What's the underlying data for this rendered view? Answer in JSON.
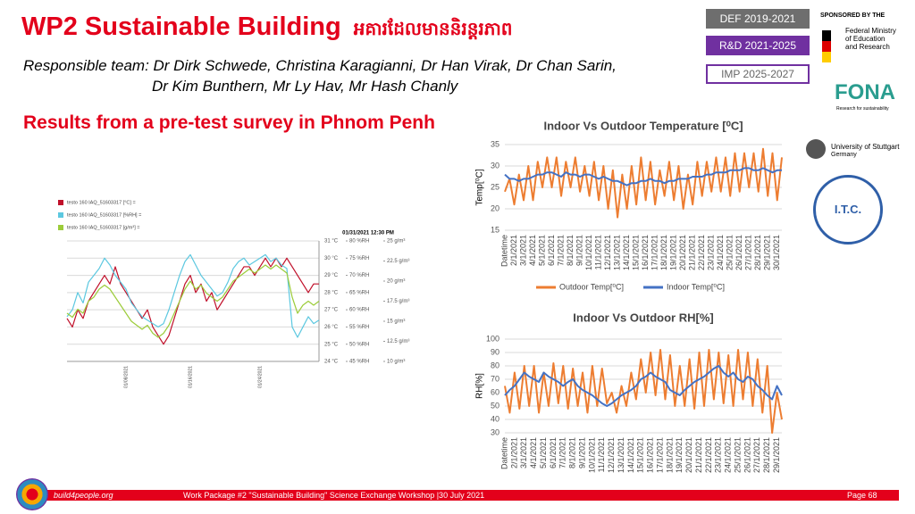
{
  "header": {
    "title": "WP2 Sustainable Building",
    "title_khmer": "អគារដែលមាននិរន្តរភាព",
    "team_line1": "Responsible team: Dr Dirk Schwede, Christina Karagianni, Dr Han Virak, Dr Chan Sarin,",
    "team_line2": "Dr Kim Bunthern, Mr Ly Hav, Mr Hash Chanly",
    "section": "Results from a pre-test survey in Phnom Penh"
  },
  "phases": [
    "DEF 2019-2021",
    "R&D 2021-2025",
    "IMP 2025-2027"
  ],
  "sponsors": {
    "sponsored_by": "SPONSORED BY THE",
    "ministry": "Federal Ministry of Education and Research",
    "fona": "FONA",
    "fona_tagline": "Research for sustainability",
    "university": "University of Stuttgart",
    "university_country": "Germany",
    "itc": "I.T.C."
  },
  "footer": {
    "site": "build4people.org",
    "event": "Work Package #2 \"Sustainable Building\" Science Exchange Workshop |30 July 2021",
    "page": "Page 68"
  },
  "chart_data": [
    {
      "type": "line",
      "subtitle": "01/31/2021 12:30 PM",
      "legend": "top-left",
      "grid": true,
      "categories": [
        null,
        null,
        null,
        null,
        null,
        null,
        null,
        null,
        null,
        null,
        null,
        "01/08/2021",
        null,
        null,
        null,
        null,
        null,
        null,
        null,
        null,
        null,
        null,
        null,
        "01/16/2021",
        null,
        null,
        null,
        null,
        null,
        null,
        null,
        null,
        null,
        null,
        null,
        null,
        "01/24/2021",
        null,
        null,
        null,
        null,
        null,
        null,
        null,
        null,
        null,
        null,
        null
      ],
      "ylim": [
        24,
        31
      ],
      "yticks": [
        {
          "value": 24,
          "label": "24 °C"
        },
        {
          "value": 25,
          "label": "25 °C"
        },
        {
          "value": 26,
          "label": "26 °C"
        },
        {
          "value": 27,
          "label": "27 °C"
        },
        {
          "value": 28,
          "label": "28 °C"
        },
        {
          "value": 29,
          "label": "29 °C"
        },
        {
          "value": 30,
          "label": "30 °C"
        },
        {
          "value": 31,
          "label": "31 °C"
        }
      ],
      "y2lim": [
        45,
        80
      ],
      "y2ticks": [
        {
          "value": 45,
          "label": "45 %RH"
        },
        {
          "value": 50,
          "label": "50 %RH"
        },
        {
          "value": 55,
          "label": "55 %RH"
        },
        {
          "value": 60,
          "label": "60 %RH"
        },
        {
          "value": 65,
          "label": "65 %RH"
        },
        {
          "value": 70,
          "label": "70 %RH"
        },
        {
          "value": 75,
          "label": "75 %RH"
        },
        {
          "value": 80,
          "label": "80 %RH"
        }
      ],
      "y3lim": [
        10,
        25
      ],
      "y3ticks": [
        {
          "value": 10,
          "label": "10 g/m³"
        },
        {
          "value": 12.5,
          "label": "12.5 g/m³"
        },
        {
          "value": 15,
          "label": "15 g/m³"
        },
        {
          "value": 17.5,
          "label": "17.5 g/m³"
        },
        {
          "value": 20,
          "label": "20 g/m³"
        },
        {
          "value": 22.5,
          "label": "22.5 g/m³"
        },
        {
          "value": 25,
          "label": "25 g/m³"
        }
      ],
      "series": [
        {
          "name": "testo 160 IAQ_51603317 [°C] =",
          "color": "#c0102a",
          "values": [
            26.5,
            26,
            27,
            26.5,
            27.5,
            28,
            28.5,
            29,
            28.5,
            29.5,
            28.5,
            28,
            27.5,
            27,
            26.5,
            27,
            26,
            25.5,
            25,
            25.5,
            26.5,
            27.5,
            28.5,
            29,
            28,
            28.5,
            27.5,
            28,
            27,
            27.5,
            28,
            28.5,
            29,
            29.5,
            29.5,
            29,
            29.5,
            30,
            29.5,
            30,
            29.5,
            30,
            29.5,
            29,
            28.5,
            28,
            28.5,
            28.5
          ]
        },
        {
          "name": "testo 160 IAQ_51603317 [%RH] =",
          "color": "#5cc8e0",
          "axis": "y2",
          "values": [
            58,
            60,
            65,
            62,
            68,
            70,
            72,
            75,
            73,
            70,
            68,
            66,
            62,
            60,
            58,
            57,
            56,
            55,
            56,
            60,
            65,
            70,
            74,
            76,
            73,
            70,
            68,
            66,
            64,
            65,
            68,
            72,
            74,
            75,
            73,
            74,
            75,
            76,
            74,
            75,
            73,
            72,
            55,
            52,
            55,
            58,
            56,
            57
          ]
        },
        {
          "name": "testo 160 IAQ_51603317 [g/m³] =",
          "color": "#9ccc3a",
          "axis": "y3",
          "values": [
            16,
            15.5,
            16.5,
            16,
            17.5,
            18,
            19,
            19.5,
            19,
            18,
            17,
            16,
            15,
            14.5,
            14,
            14.5,
            13.5,
            13,
            13.5,
            14.5,
            16,
            17.5,
            19,
            20,
            19,
            19.5,
            18.5,
            18,
            17.5,
            18,
            19,
            20,
            20.5,
            21,
            21.5,
            21,
            21.5,
            22,
            21.5,
            22,
            21.5,
            21,
            18,
            16,
            17,
            17.5,
            17,
            17.5
          ]
        }
      ]
    },
    {
      "type": "line",
      "title": "Indoor Vs Outdoor Temperature [⁰C]",
      "ylabel": "Temp[⁰C]",
      "legend": "bottom",
      "grid": true,
      "categories": [
        "Datetime",
        null,
        "2/1/2021",
        null,
        "3/1/2021",
        null,
        "4/1/2021",
        null,
        "5/1/2021",
        null,
        "6/1/2021",
        null,
        "7/1/2021",
        null,
        "8/1/2021",
        null,
        "9/1/2021",
        null,
        "10/1/2021",
        null,
        "11/1/2021",
        null,
        "12/1/2021",
        null,
        "13/1/2021",
        null,
        "14/1/2021",
        null,
        "15/1/2021",
        null,
        "16/1/2021",
        null,
        "17/1/2021",
        null,
        "18/1/2021",
        null,
        "19/1/2021",
        null,
        "20/1/2021",
        null,
        "21/1/2021",
        null,
        "22/1/2021",
        null,
        "23/1/2021",
        null,
        "24/1/2021",
        null,
        "25/1/2021",
        null,
        "26/1/2021",
        null,
        "27/1/2021",
        null,
        "28/1/2021",
        null,
        "29/1/2021",
        null,
        "30/1/2021",
        null
      ],
      "ylim": [
        15,
        35
      ],
      "yticks": [
        15,
        20,
        25,
        30,
        35
      ],
      "series": [
        {
          "name": "Outdoor Temp[⁰C]",
          "color": "#ed7d31",
          "values": [
            24,
            27,
            21,
            28,
            22,
            30,
            22,
            31,
            25,
            32,
            25,
            32,
            23,
            31,
            25,
            32,
            24,
            30,
            23,
            31,
            22,
            30,
            20,
            29,
            18,
            28,
            20,
            30,
            21,
            32,
            22,
            31,
            21,
            29,
            23,
            31,
            22,
            30,
            20,
            28,
            21,
            31,
            23,
            31,
            24,
            32,
            24,
            32,
            23,
            33,
            24,
            33,
            25,
            33,
            24,
            34,
            23,
            33,
            22,
            32
          ]
        },
        {
          "name": "Indoor Temp[⁰C]",
          "color": "#4472c4",
          "values": [
            28,
            27,
            27,
            26.5,
            27,
            27,
            27.5,
            28,
            28,
            28.5,
            28.5,
            28,
            27.5,
            28.5,
            28,
            28,
            27.5,
            28,
            28,
            27.5,
            27,
            27.5,
            27,
            26.5,
            26.5,
            26,
            25.5,
            26,
            26,
            26.5,
            26.5,
            27,
            26.5,
            26.5,
            26,
            26.5,
            26.5,
            27,
            27,
            27,
            27.5,
            27.5,
            27.5,
            28,
            28,
            28.5,
            28.5,
            28.5,
            29,
            29,
            29,
            29.5,
            29.5,
            29,
            29,
            29.5,
            29,
            28.5,
            29,
            29
          ]
        }
      ]
    },
    {
      "type": "line",
      "title": "Indoor Vs Outdoor RH[%]",
      "ylabel": "RH[%]",
      "grid": true,
      "categories": [
        "Datetime",
        null,
        "2/1/2021",
        null,
        "3/1/2021",
        null,
        "4/1/2021",
        null,
        "5/1/2021",
        null,
        "6/1/2021",
        null,
        "7/1/2021",
        null,
        "8/1/2021",
        null,
        "9/1/2021",
        null,
        "10/1/2021",
        null,
        "11/1/2021",
        null,
        "12/1/2021",
        null,
        "13/1/2021",
        null,
        "14/1/2021",
        null,
        "15/1/2021",
        null,
        "16/1/2021",
        null,
        "17/1/2021",
        null,
        "18/1/2021",
        null,
        "19/1/2021",
        null,
        "20/1/2021",
        null,
        "21/1/2021",
        null,
        "22/1/2021",
        null,
        "23/1/2021",
        null,
        "24/1/2021",
        null,
        "25/1/2021",
        null,
        "26/1/2021",
        null,
        "27/1/2021",
        null,
        "28/1/2021",
        null,
        "29/1/2021",
        null
      ],
      "ylim": [
        30,
        100
      ],
      "yticks": [
        30,
        40,
        50,
        60,
        70,
        80,
        90,
        100
      ],
      "series": [
        {
          "color": "#ed7d31",
          "values": [
            65,
            45,
            75,
            48,
            80,
            50,
            80,
            45,
            75,
            50,
            82,
            52,
            80,
            48,
            78,
            50,
            75,
            45,
            80,
            50,
            78,
            52,
            60,
            45,
            65,
            50,
            75,
            55,
            85,
            60,
            90,
            58,
            92,
            55,
            88,
            50,
            80,
            50,
            85,
            48,
            90,
            50,
            92,
            55,
            90,
            52,
            88,
            50,
            92,
            55,
            90,
            50,
            85,
            45,
            80,
            30,
            60,
            40
          ]
        },
        {
          "color": "#4472c4",
          "values": [
            58,
            62,
            65,
            70,
            75,
            72,
            70,
            68,
            75,
            72,
            70,
            68,
            65,
            68,
            70,
            65,
            62,
            60,
            58,
            55,
            52,
            50,
            52,
            55,
            58,
            60,
            62,
            65,
            70,
            72,
            75,
            72,
            70,
            68,
            62,
            60,
            58,
            62,
            65,
            68,
            70,
            72,
            75,
            78,
            80,
            75,
            72,
            75,
            70,
            68,
            72,
            70,
            65,
            62,
            58,
            55,
            65,
            58
          ]
        }
      ]
    }
  ]
}
